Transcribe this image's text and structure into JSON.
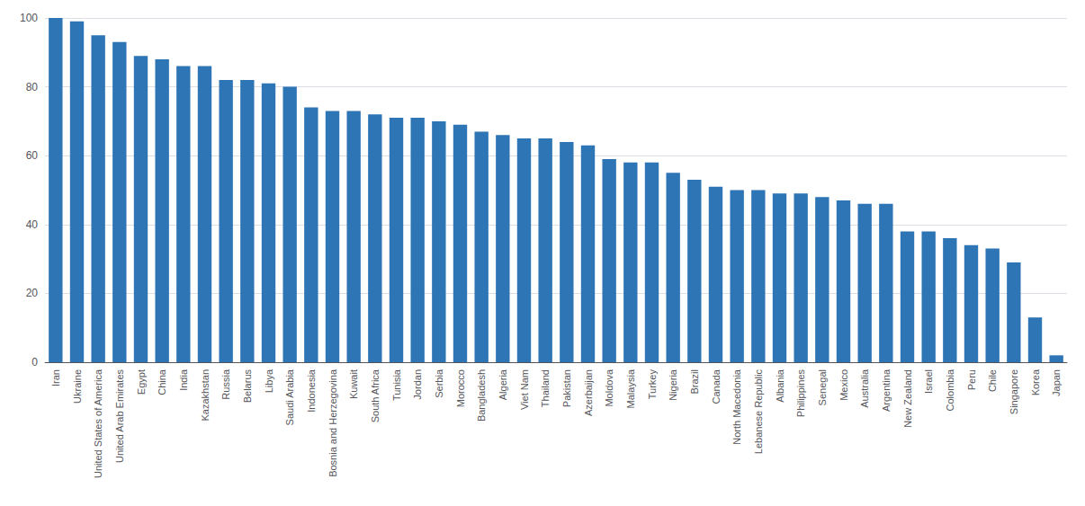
{
  "chart_data": {
    "type": "bar",
    "categories": [
      "Iran",
      "Ukraine",
      "United States of America",
      "United Arab Emirates",
      "Egypt",
      "China",
      "India",
      "Kazakhstan",
      "Russia",
      "Belarus",
      "Libya",
      "Saudi Arabia",
      "Indonesia",
      "Bosnia and Herzegovina",
      "Kuwait",
      "South Africa",
      "Tunisia",
      "Jordan",
      "Serbia",
      "Morocco",
      "Bangladesh",
      "Algeria",
      "Viet Nam",
      "Thailand",
      "Pakistan",
      "Azerbaijan",
      "Moldova",
      "Malaysia",
      "Turkey",
      "Nigeria",
      "Brazil",
      "Canada",
      "North Macedonia",
      "Lebanese Republic",
      "Albania",
      "Philippines",
      "Senegal",
      "Mexico",
      "Australia",
      "Argentina",
      "New Zealand",
      "Israel",
      "Colombia",
      "Peru",
      "Chile",
      "Singapore",
      "Korea",
      "Japan"
    ],
    "values": [
      100,
      99,
      95,
      93,
      89,
      88,
      86,
      86,
      82,
      82,
      81,
      80,
      74,
      73,
      73,
      72,
      71,
      71,
      70,
      69,
      67,
      66,
      65,
      65,
      64,
      63,
      59,
      58,
      58,
      55,
      53,
      51,
      50,
      50,
      49,
      49,
      48,
      47,
      46,
      46,
      38,
      38,
      36,
      34,
      33,
      29,
      13,
      2
    ],
    "color": "#2E75B6",
    "ylim": [
      0,
      100
    ],
    "yticks": [
      0,
      20,
      40,
      60,
      80,
      100
    ],
    "grid": true
  }
}
